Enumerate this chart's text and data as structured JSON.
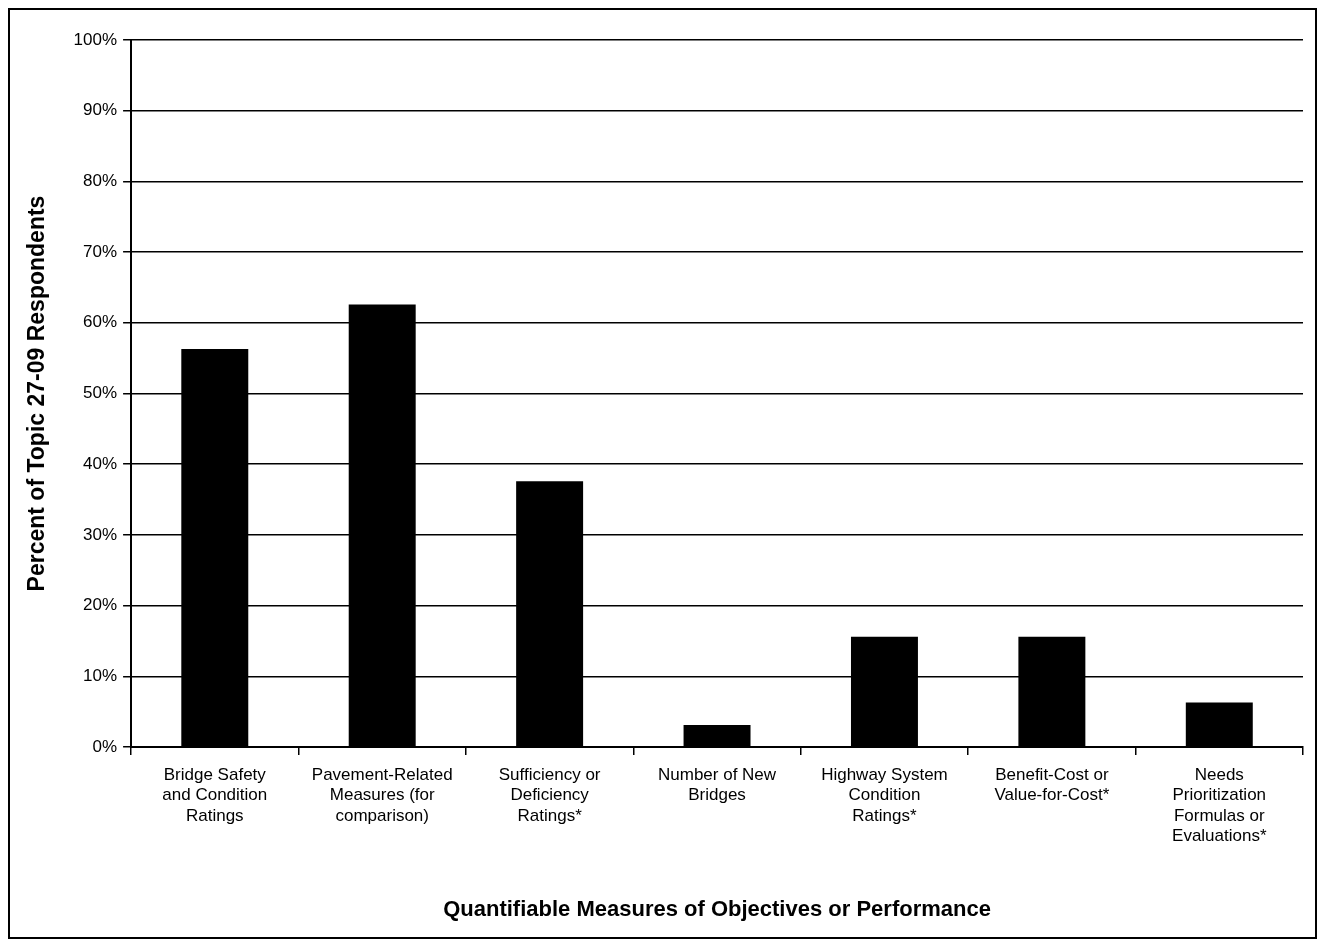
{
  "chart_data": {
    "type": "bar",
    "xlabel": "Quantifiable Measures of Objectives or Performance",
    "ylabel": "Percent of Topic 27-09 Respondents",
    "categories": [
      "Bridge Safety and Condition Ratings",
      "Pavement-Related Measures (for comparison)",
      "Sufficiency or Deficiency Ratings*",
      "Number of New Bridges",
      "Highway System Condition Ratings*",
      "Benefit-Cost or Value-for-Cost*",
      "Needs Prioritization Formulas or Evaluations*"
    ],
    "values": [
      56.3,
      62.6,
      37.6,
      3.1,
      15.6,
      15.6,
      6.3
    ],
    "color": "#000000",
    "ylim": [
      0,
      100
    ],
    "yticks": [
      {
        "value": 0,
        "label": "0%"
      },
      {
        "value": 10,
        "label": "10%"
      },
      {
        "value": 20,
        "label": "20%"
      },
      {
        "value": 30,
        "label": "30%"
      },
      {
        "value": 40,
        "label": "40%"
      },
      {
        "value": 50,
        "label": "50%"
      },
      {
        "value": 60,
        "label": "60%"
      },
      {
        "value": 70,
        "label": "70%"
      },
      {
        "value": 80,
        "label": "80%"
      },
      {
        "value": 90,
        "label": "90%"
      },
      {
        "value": 100,
        "label": "100%"
      }
    ],
    "grid": "y",
    "legend": false
  }
}
